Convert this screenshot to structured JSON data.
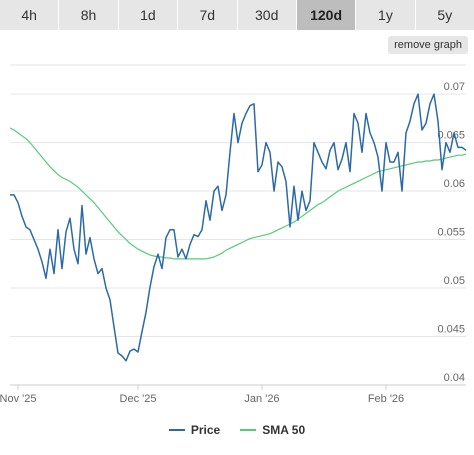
{
  "toolbar": {
    "tabs": [
      "4h",
      "8h",
      "1d",
      "7d",
      "30d",
      "120d",
      "1y",
      "5y"
    ],
    "active_tab": "120d",
    "remove_label": "remove graph"
  },
  "colors": {
    "price": "#2b6aa6",
    "sma": "#55cc77",
    "grid": "#e6e6e6",
    "axis": "#666666"
  },
  "chart_data": {
    "type": "line",
    "x_labels": [
      "Nov '25",
      "Dec '25",
      "Jan '26",
      "Feb '26"
    ],
    "x_label_index": [
      2,
      32,
      63,
      94
    ],
    "y_ticks": [
      0.04,
      0.045,
      0.05,
      0.055,
      0.06,
      0.065,
      0.07
    ],
    "ylim": [
      0.04,
      0.073
    ],
    "n_points": 115,
    "grid": true,
    "legend": "bottom-center",
    "series": [
      {
        "name": "Price",
        "values": [
          0.0596,
          0.0596,
          0.0588,
          0.0574,
          0.0563,
          0.056,
          0.055,
          0.054,
          0.0527,
          0.051,
          0.054,
          0.0515,
          0.056,
          0.052,
          0.0558,
          0.0572,
          0.054,
          0.0525,
          0.0585,
          0.0535,
          0.0552,
          0.053,
          0.0515,
          0.052,
          0.05,
          0.0488,
          0.046,
          0.0433,
          0.043,
          0.0425,
          0.0435,
          0.0437,
          0.0434,
          0.0455,
          0.0475,
          0.0501,
          0.0522,
          0.0535,
          0.052,
          0.0552,
          0.056,
          0.056,
          0.0532,
          0.054,
          0.053,
          0.0545,
          0.0555,
          0.0553,
          0.056,
          0.059,
          0.057,
          0.06,
          0.0605,
          0.058,
          0.0596,
          0.064,
          0.068,
          0.065,
          0.067,
          0.068,
          0.0688,
          0.069,
          0.062,
          0.0627,
          0.065,
          0.064,
          0.06,
          0.063,
          0.0625,
          0.061,
          0.0563,
          0.0605,
          0.057,
          0.06,
          0.058,
          0.059,
          0.065,
          0.064,
          0.063,
          0.0623,
          0.0642,
          0.065,
          0.0622,
          0.0633,
          0.065,
          0.062,
          0.068,
          0.067,
          0.064,
          0.068,
          0.066,
          0.065,
          0.0635,
          0.06,
          0.065,
          0.063,
          0.063,
          0.064,
          0.06,
          0.066,
          0.0672,
          0.069,
          0.07,
          0.0663,
          0.067,
          0.069,
          0.07,
          0.0672,
          0.0622,
          0.065,
          0.064,
          0.066,
          0.0645,
          0.0645,
          0.0642
        ]
      },
      {
        "name": "SMA 50",
        "values": [
          0.0665,
          0.0663,
          0.066,
          0.0657,
          0.0654,
          0.065,
          0.0645,
          0.064,
          0.0635,
          0.063,
          0.0625,
          0.0621,
          0.0617,
          0.0614,
          0.0612,
          0.061,
          0.0607,
          0.0604,
          0.06,
          0.0596,
          0.0592,
          0.0588,
          0.0583,
          0.0578,
          0.0573,
          0.0568,
          0.0563,
          0.0558,
          0.0554,
          0.055,
          0.0546,
          0.0543,
          0.054,
          0.0538,
          0.0536,
          0.0534,
          0.0533,
          0.0532,
          0.0532,
          0.0531,
          0.0531,
          0.053,
          0.053,
          0.053,
          0.053,
          0.053,
          0.053,
          0.053,
          0.053,
          0.053,
          0.0531,
          0.0532,
          0.0534,
          0.0536,
          0.0539,
          0.0541,
          0.0543,
          0.0545,
          0.0547,
          0.0549,
          0.0551,
          0.0552,
          0.0553,
          0.0554,
          0.0555,
          0.0556,
          0.0558,
          0.056,
          0.0562,
          0.0564,
          0.0566,
          0.0568,
          0.0571,
          0.0574,
          0.0577,
          0.058,
          0.0583,
          0.0586,
          0.0588,
          0.0591,
          0.0594,
          0.0597,
          0.06,
          0.0602,
          0.0604,
          0.0606,
          0.0608,
          0.061,
          0.0612,
          0.0614,
          0.0616,
          0.0618,
          0.062,
          0.0621,
          0.0622,
          0.0623,
          0.0624,
          0.0625,
          0.0626,
          0.0627,
          0.0628,
          0.0629,
          0.063,
          0.063,
          0.0631,
          0.0631,
          0.0632,
          0.0632,
          0.0633,
          0.0634,
          0.0635,
          0.0636,
          0.0637,
          0.0637,
          0.0638
        ]
      }
    ]
  }
}
